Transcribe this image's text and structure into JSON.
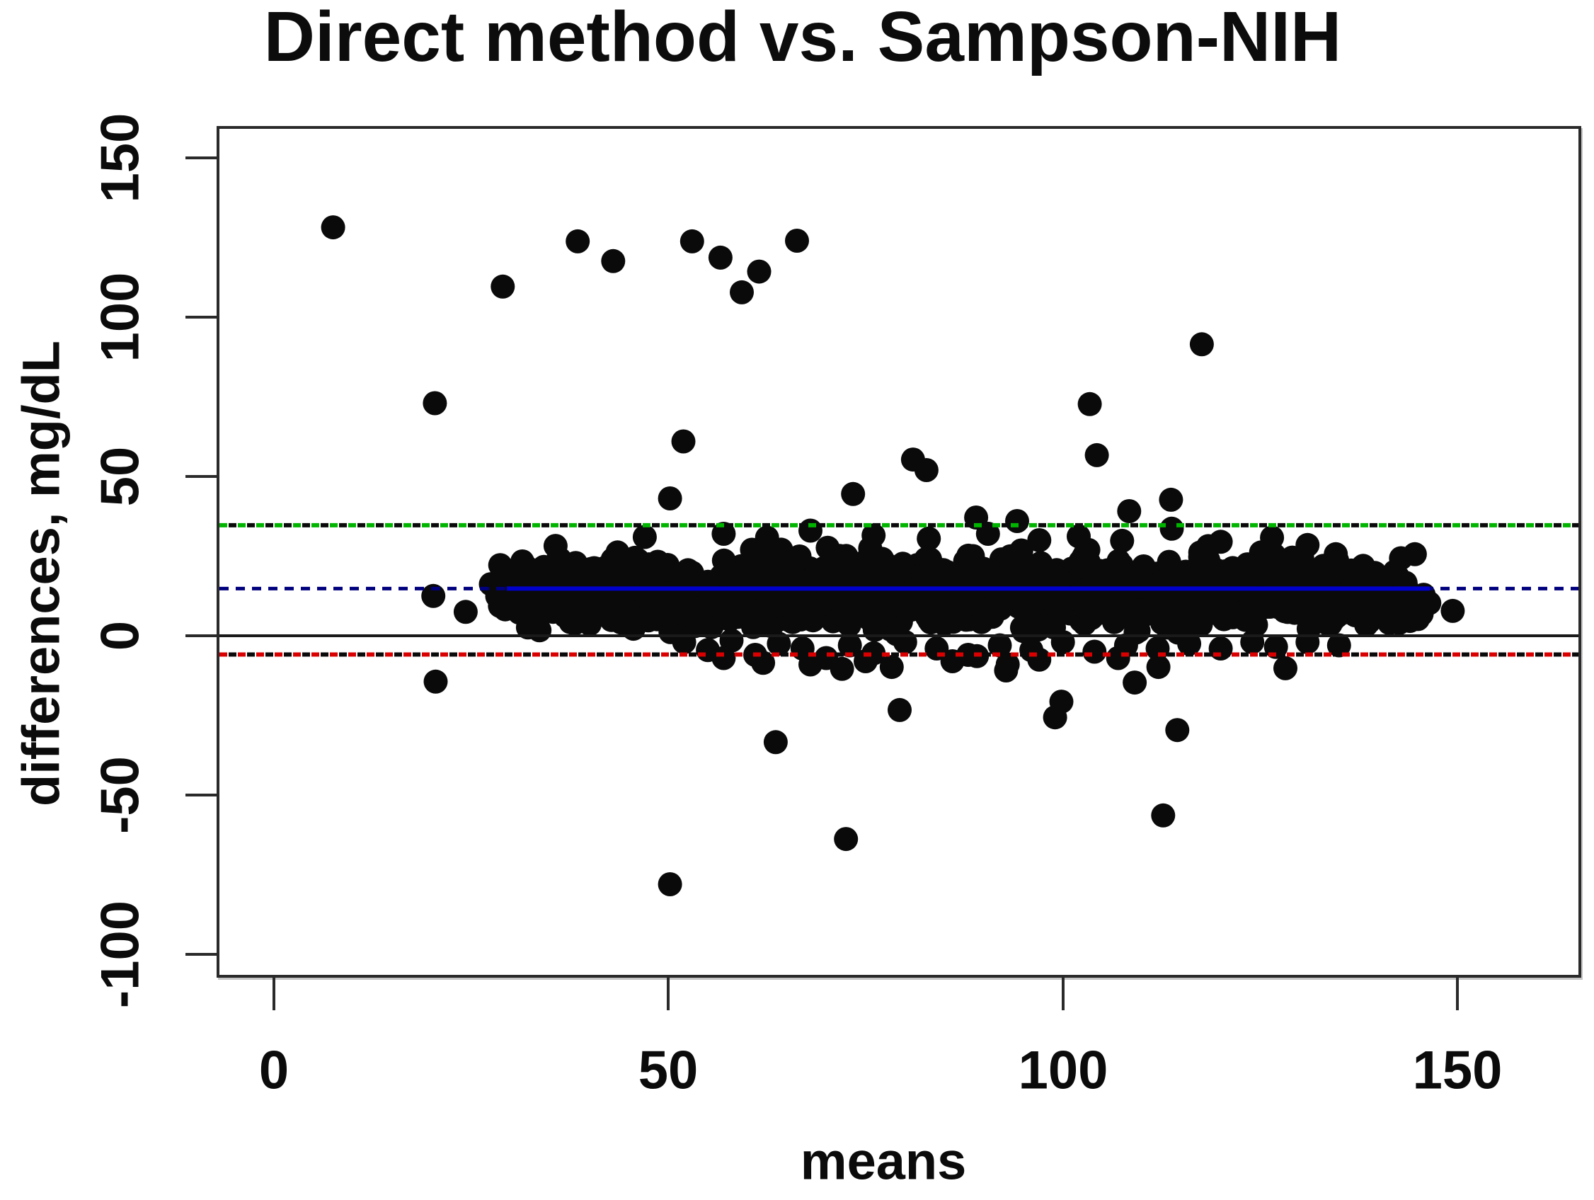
{
  "chart_data": {
    "type": "scatter",
    "title": "Direct method vs. Sampson-NIH",
    "xlabel": "means",
    "ylabel": "differences, mg/dL",
    "xlim": [
      -7,
      165.5
    ],
    "ylim": [
      -106.5,
      159.1
    ],
    "x_ticks": [
      0,
      50,
      100,
      150
    ],
    "y_ticks": [
      150,
      100,
      50,
      0,
      -50,
      -100
    ],
    "grid": false,
    "legend": "none",
    "marker": {
      "shape": "filled-circle",
      "radius_px": 17,
      "color": "#0a0a0a"
    },
    "reference_lines": [
      {
        "name": "upper-limit-of-agreement",
        "y": 34.7,
        "color": "#00b400",
        "secondary_color": "#0a0a0a",
        "style": "alternating-dashed",
        "x_span": "full"
      },
      {
        "name": "mean-bias-dashed",
        "y": 14.8,
        "color": "#00007e",
        "style": "dashed",
        "x_span": "full"
      },
      {
        "name": "mean-bias-solid-fit",
        "y": 14.8,
        "color": "#0000cc",
        "style": "solid",
        "x_span": [
          29.5,
          146.5
        ]
      },
      {
        "name": "zero-line",
        "y": 0,
        "color": "#1a1a1a",
        "style": "solid",
        "x_span": "full"
      },
      {
        "name": "lower-limit-of-agreement",
        "y": -5.9,
        "color": "#d80000",
        "secondary_color": "#0a0a0a",
        "style": "alternating-dashed",
        "x_span": "full"
      }
    ],
    "points_sparse": [
      [
        7.5,
        128.2
      ],
      [
        38.5,
        123.8
      ],
      [
        43,
        117.6
      ],
      [
        53,
        123.8
      ],
      [
        56.6,
        118.7
      ],
      [
        66.3,
        124
      ],
      [
        61.5,
        114.3
      ],
      [
        59.3,
        107.8
      ],
      [
        29,
        109.6
      ],
      [
        20.4,
        73
      ],
      [
        51.9,
        61
      ],
      [
        50.2,
        43.1
      ],
      [
        73.4,
        44.5
      ],
      [
        81,
        55.3
      ],
      [
        82.7,
        52
      ],
      [
        103.4,
        72.7
      ],
      [
        104.3,
        56.7
      ],
      [
        117.6,
        91.5
      ],
      [
        108.4,
        39.1
      ],
      [
        113.7,
        42.7
      ],
      [
        89,
        37.1
      ],
      [
        94.2,
        36
      ],
      [
        113.8,
        33.6
      ],
      [
        144.6,
        25.6
      ],
      [
        35.7,
        28.2
      ],
      [
        47,
        31
      ],
      [
        57,
        32
      ],
      [
        62.5,
        30.8
      ],
      [
        68,
        33
      ],
      [
        76,
        31.5
      ],
      [
        83,
        30.5
      ],
      [
        90.5,
        32
      ],
      [
        97,
        30
      ],
      [
        102,
        31.2
      ],
      [
        107.5,
        29.8
      ],
      [
        120,
        29.5
      ],
      [
        126.5,
        30.8
      ],
      [
        131,
        28.5
      ],
      [
        20.2,
        12.5
      ],
      [
        24.3,
        7.5
      ],
      [
        27.5,
        16.2
      ],
      [
        28.3,
        12.4
      ],
      [
        29.2,
        20.4
      ],
      [
        138.7,
        10.7
      ],
      [
        139.4,
        6.9
      ],
      [
        140.7,
        10
      ],
      [
        141.2,
        17.3
      ],
      [
        142.4,
        12.2
      ],
      [
        142.6,
        4
      ],
      [
        143.4,
        14.7
      ],
      [
        149.4,
        7.8
      ],
      [
        52,
        -2
      ],
      [
        55,
        -4.5
      ],
      [
        58,
        -1.5
      ],
      [
        61,
        -6
      ],
      [
        64,
        -2.5
      ],
      [
        67,
        -4
      ],
      [
        70,
        -7
      ],
      [
        73,
        -3
      ],
      [
        76,
        -5.5
      ],
      [
        80,
        -2
      ],
      [
        84,
        -4
      ],
      [
        88,
        -6
      ],
      [
        92,
        -3
      ],
      [
        96,
        -4.5
      ],
      [
        100,
        -2
      ],
      [
        104,
        -5
      ],
      [
        108,
        -3
      ],
      [
        112,
        -4
      ],
      [
        116,
        -2.5
      ],
      [
        120,
        -4
      ],
      [
        124,
        -2
      ],
      [
        127,
        -3.5
      ],
      [
        131,
        -2
      ],
      [
        135,
        -3
      ],
      [
        75,
        -8
      ],
      [
        68,
        -9
      ],
      [
        62,
        -8.5
      ],
      [
        57,
        -7
      ],
      [
        86,
        -8
      ],
      [
        97,
        -7.5
      ],
      [
        107,
        -7
      ],
      [
        93,
        -9
      ],
      [
        20.5,
        -14.4
      ],
      [
        50.2,
        -78
      ],
      [
        63.6,
        -33.4
      ],
      [
        72.5,
        -63.8
      ],
      [
        72,
        -10.4
      ],
      [
        78.3,
        -9.8
      ],
      [
        79.3,
        -23.3
      ],
      [
        89.1,
        -6.4
      ],
      [
        92.8,
        -10.9
      ],
      [
        99,
        -25.6
      ],
      [
        99.8,
        -20.7
      ],
      [
        109.1,
        -14.7
      ],
      [
        112.1,
        -9.8
      ],
      [
        112.7,
        -56.4
      ],
      [
        114.5,
        -29.6
      ],
      [
        128.2,
        -10.2
      ]
    ],
    "dense_cloud": {
      "description": "solid black band of overlapping points centered just below the blue mean line",
      "count": 1300,
      "seed": 1337,
      "x_range": [
        28.5,
        146.5
      ],
      "y_mean": 14.2,
      "y_sd": 5.3,
      "y_clip": [
        0.4,
        28.2
      ]
    }
  },
  "colors": {
    "background": "#ffffff",
    "text": "#0b0b0b",
    "frame": "#2a2a2a",
    "marker": "#0a0a0a",
    "green_line": "#00b400",
    "red_line": "#d80000",
    "navy_dashed": "#00007e",
    "blue_solid": "#0000cc",
    "zero_line": "#1a1a1a"
  }
}
